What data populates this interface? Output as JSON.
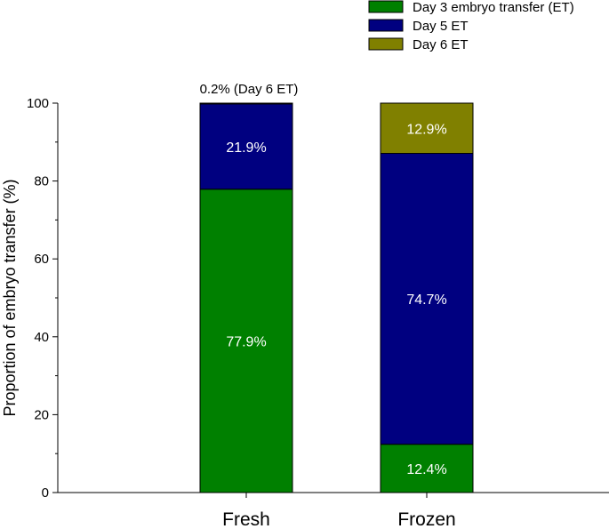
{
  "chart_data": {
    "type": "bar",
    "stacked": true,
    "categories": [
      "Fresh",
      "Frozen"
    ],
    "series": [
      {
        "name": "Day 3 embryo transfer (ET)",
        "color": "#008000",
        "values": [
          77.9,
          12.4
        ],
        "labels": [
          "77.9%",
          "12.4%"
        ]
      },
      {
        "name": "Day 5 ET",
        "color": "#000080",
        "values": [
          21.9,
          74.7
        ],
        "labels": [
          "21.9%",
          "74.7%"
        ]
      },
      {
        "name": "Day 6 ET",
        "color": "#808000",
        "values": [
          0.2,
          12.9
        ],
        "labels": [
          "",
          "12.9%"
        ]
      }
    ],
    "ylabel": "Proportion of embryo transfer (%)",
    "xlabel": "",
    "ylim": [
      0,
      100
    ],
    "yticks": [
      0,
      20,
      40,
      60,
      80,
      100
    ],
    "grid": false,
    "legend": "top-right",
    "annotations": [
      {
        "category": "Fresh",
        "text": "0.2% (Day 6 ET)"
      }
    ]
  }
}
